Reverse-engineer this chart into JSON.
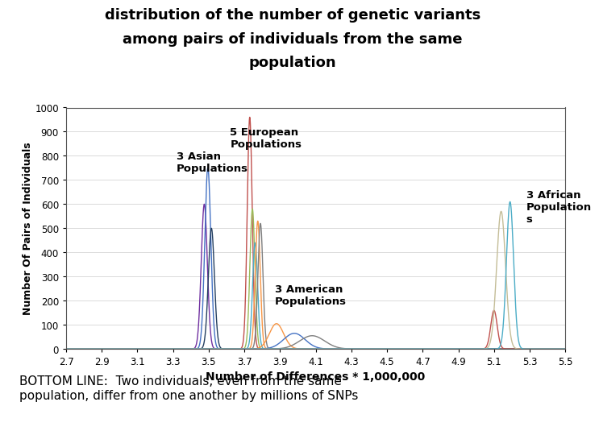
{
  "title_line1": "distribution of the number of genetic variants",
  "title_line2": "among pairs of individuals from the same",
  "title_line3": "population",
  "xlabel": "Number of Differences * 1,000,000",
  "ylabel": "Number Of Pairs of Individuals",
  "xlim": [
    2.7,
    5.5
  ],
  "ylim": [
    0,
    1000
  ],
  "xticks": [
    2.7,
    2.9,
    3.1,
    3.3,
    3.5,
    3.7,
    3.9,
    4.1,
    4.3,
    4.5,
    4.7,
    4.9,
    5.1,
    5.3,
    5.5
  ],
  "yticks": [
    0,
    100,
    200,
    300,
    400,
    500,
    600,
    700,
    800,
    900,
    1000
  ],
  "bottom_text": "BOTTOM LINE:  Two individuals, even from the same\npopulation, differ from one another by millions of SNPs",
  "bottom_bg": "#ffff00",
  "outer_bg": "#ffffff",
  "plot_bg": "#ffffff",
  "ann_asian_text": "3 Asian\nPopulations",
  "ann_asian_x": 3.32,
  "ann_asian_y": 820,
  "ann_euro_text": "5 European\nPopulations",
  "ann_euro_x": 3.62,
  "ann_euro_y": 920,
  "ann_amer_text": "3 American\nPopulations",
  "ann_amer_x": 3.87,
  "ann_amer_y": 270,
  "ann_afr_text": "3 African\nPopulation\ns",
  "ann_afr_x": 5.28,
  "ann_afr_y": 660,
  "populations": {
    "asian": {
      "means": [
        3.475,
        3.495,
        3.515
      ],
      "stds": [
        0.017,
        0.017,
        0.017
      ],
      "peaks": [
        600,
        750,
        500
      ],
      "colors": [
        "#7030a0",
        "#4472c4",
        "#243f60"
      ]
    },
    "european": {
      "means": [
        3.73,
        3.745,
        3.76,
        3.775,
        3.79
      ],
      "stds": [
        0.014,
        0.014,
        0.014,
        0.014,
        0.014
      ],
      "peaks": [
        960,
        580,
        440,
        530,
        520
      ],
      "colors": [
        "#c0504d",
        "#9bbb59",
        "#4bacc6",
        "#f79646",
        "#808080"
      ]
    },
    "american": {
      "means": [
        3.88,
        3.98,
        4.08
      ],
      "stds": [
        0.04,
        0.06,
        0.07
      ],
      "peaks": [
        105,
        65,
        55
      ],
      "colors": [
        "#f79646",
        "#4472c4",
        "#7f7f7f"
      ]
    },
    "african": {
      "means": [
        5.1,
        5.14,
        5.19
      ],
      "stds": [
        0.018,
        0.025,
        0.02
      ],
      "peaks": [
        160,
        570,
        610
      ],
      "colors": [
        "#c0504d",
        "#c4bd97",
        "#4bacc6"
      ]
    }
  }
}
